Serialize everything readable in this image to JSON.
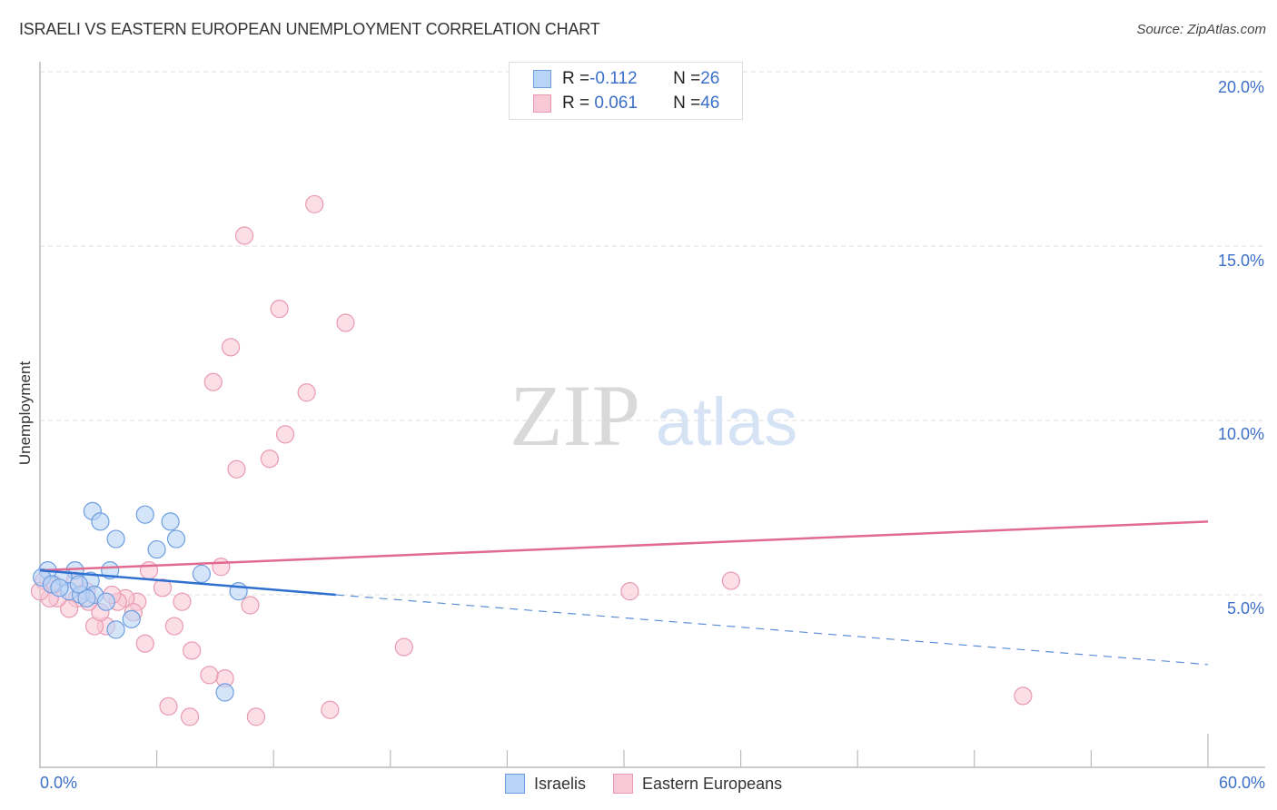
{
  "header": {
    "title": "ISRAELI VS EASTERN EUROPEAN UNEMPLOYMENT CORRELATION CHART",
    "source": "Source: ZipAtlas.com"
  },
  "axes": {
    "y_label": "Unemployment",
    "y_ticks": [
      "20.0%",
      "15.0%",
      "10.0%",
      "5.0%"
    ],
    "x_ticks": [
      "0.0%",
      "60.0%"
    ]
  },
  "legend": {
    "rows": [
      {
        "r_label": "R = ",
        "r_value": "-0.112",
        "n_label": "N = ",
        "n_value": "26",
        "color": "#b8d4f6"
      },
      {
        "r_label": "R = ",
        "r_value": " 0.061",
        "n_label": "N = ",
        "n_value": "46",
        "color": "#f9c8d6"
      }
    ],
    "series": [
      {
        "label": "Israelis",
        "color": "#b8d4f6"
      },
      {
        "label": "Eastern Europeans",
        "color": "#f9c8d6"
      }
    ]
  },
  "watermark": {
    "zip": "ZIP",
    "atlas": "atlas"
  },
  "chart_data": {
    "type": "scatter",
    "title": "ISRAELI VS EASTERN EUROPEAN UNEMPLOYMENT CORRELATION CHART",
    "xlabel": "",
    "ylabel": "Unemployment",
    "xlim": [
      0,
      60
    ],
    "ylim": [
      0,
      20.5
    ],
    "x_tick_labels": [
      "0.0%",
      "60.0%"
    ],
    "y_tick_labels": [
      "5.0%",
      "10.0%",
      "15.0%",
      "20.0%"
    ],
    "grid": "horizontal dashed",
    "legend_position": "top-center and bottom",
    "series": [
      {
        "name": "Israelis",
        "color": "#6d9ee0",
        "fill": "#b8d4f6",
        "R": -0.112,
        "N": 26,
        "points": [
          [
            2.7,
            7.4
          ],
          [
            3.1,
            7.1
          ],
          [
            5.4,
            7.3
          ],
          [
            6.7,
            7.1
          ],
          [
            3.9,
            6.6
          ],
          [
            7.0,
            6.6
          ],
          [
            6.0,
            6.3
          ],
          [
            8.3,
            5.6
          ],
          [
            3.6,
            5.7
          ],
          [
            0.4,
            5.7
          ],
          [
            1.8,
            5.7
          ],
          [
            10.2,
            5.1
          ],
          [
            0.1,
            5.5
          ],
          [
            1.2,
            5.5
          ],
          [
            2.6,
            5.4
          ],
          [
            0.6,
            5.3
          ],
          [
            1.5,
            5.1
          ],
          [
            2.1,
            5.0
          ],
          [
            2.8,
            5.0
          ],
          [
            3.4,
            4.8
          ],
          [
            2.4,
            4.9
          ],
          [
            4.7,
            4.3
          ],
          [
            3.9,
            4.0
          ],
          [
            9.5,
            2.2
          ],
          [
            1.0,
            5.2
          ],
          [
            2.0,
            5.3
          ]
        ],
        "trend": {
          "x0": 0,
          "y0": 5.7,
          "x_solid_end": 15.2,
          "y_solid_end": 5.0,
          "x1": 60,
          "y1": 3.0
        }
      },
      {
        "name": "Eastern Europeans",
        "color": "#e99ab2",
        "fill": "#f9c8d6",
        "R": 0.061,
        "N": 46,
        "points": [
          [
            14.1,
            16.2
          ],
          [
            10.5,
            15.3
          ],
          [
            12.3,
            13.2
          ],
          [
            15.7,
            12.8
          ],
          [
            9.8,
            12.1
          ],
          [
            8.9,
            11.1
          ],
          [
            13.7,
            10.8
          ],
          [
            12.6,
            9.6
          ],
          [
            11.8,
            8.9
          ],
          [
            10.1,
            8.6
          ],
          [
            35.5,
            5.4
          ],
          [
            30.3,
            5.1
          ],
          [
            50.5,
            2.1
          ],
          [
            18.7,
            3.5
          ],
          [
            14.9,
            1.7
          ],
          [
            11.1,
            1.5
          ],
          [
            7.7,
            1.5
          ],
          [
            6.6,
            1.8
          ],
          [
            9.5,
            2.6
          ],
          [
            8.7,
            2.7
          ],
          [
            7.8,
            3.4
          ],
          [
            6.9,
            4.1
          ],
          [
            5.4,
            3.6
          ],
          [
            10.8,
            4.7
          ],
          [
            9.3,
            5.8
          ],
          [
            7.3,
            4.8
          ],
          [
            6.3,
            5.2
          ],
          [
            5.6,
            5.7
          ],
          [
            5.0,
            4.8
          ],
          [
            4.4,
            4.9
          ],
          [
            4.0,
            4.8
          ],
          [
            3.7,
            5.0
          ],
          [
            4.8,
            4.5
          ],
          [
            3.4,
            4.1
          ],
          [
            2.8,
            4.1
          ],
          [
            3.1,
            4.5
          ],
          [
            2.5,
            4.8
          ],
          [
            1.9,
            4.9
          ],
          [
            1.5,
            4.6
          ],
          [
            0.9,
            4.9
          ],
          [
            0.5,
            4.9
          ],
          [
            0.2,
            5.4
          ],
          [
            0.7,
            5.3
          ],
          [
            2.4,
            5.1
          ],
          [
            1.8,
            5.4
          ],
          [
            0.0,
            5.1
          ]
        ],
        "trend": {
          "x0": 0,
          "y0": 5.7,
          "x1": 60,
          "y1": 7.1
        }
      }
    ]
  }
}
